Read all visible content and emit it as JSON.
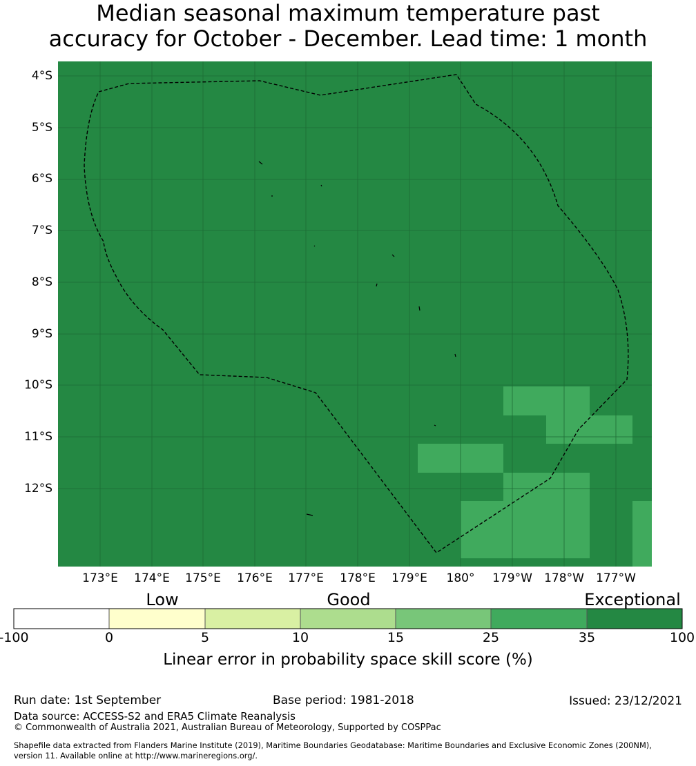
{
  "title_line1": "Median seasonal maximum temperature past",
  "title_line2": "accuracy for October - December. Lead time: 1 month",
  "map": {
    "lat_labels": [
      "4°S",
      "5°S",
      "6°S",
      "7°S",
      "8°S",
      "9°S",
      "10°S",
      "11°S",
      "12°S"
    ],
    "lon_labels": [
      "173°E",
      "174°E",
      "175°E",
      "176°E",
      "177°E",
      "178°E",
      "179°E",
      "180°",
      "179°W",
      "178°W",
      "177°W"
    ],
    "background_color": "#248843",
    "patch_color": "#40aa5d",
    "grid_color": "#1d6b35",
    "boundary_label": "EEZ"
  },
  "legend": {
    "categories": [
      "Low",
      "Good",
      "Exceptional"
    ],
    "ticks": [
      "-100",
      "0",
      "5",
      "10",
      "15",
      "25",
      "35",
      "100"
    ],
    "colors": [
      "#ffffff",
      "#ffffcc",
      "#d9f0a3",
      "#addd8e",
      "#78c679",
      "#40aa5d",
      "#248843"
    ],
    "label": "Linear error in probability space skill score (%)"
  },
  "footer": {
    "run_date": "Run date: 1st September",
    "base_period": "Base period: 1981-2018",
    "issued": "Issued: 23/12/2021",
    "data_source": "Data source: ACCESS-S2 and ERA5 Climate Reanalysis",
    "copyright": "© Commonwealth of Australia 2021, Australian Bureau of Meteorology, Supported by COSPPac",
    "shapefile_line1": "Shapefile data extracted from Flanders Marine Institute (2019), Maritime Boundaries Geodatabase: Maritime Boundaries and Exclusive Economic Zones (200NM),",
    "shapefile_line2": "version 11. Available online at http://www.marineregions.org/."
  }
}
